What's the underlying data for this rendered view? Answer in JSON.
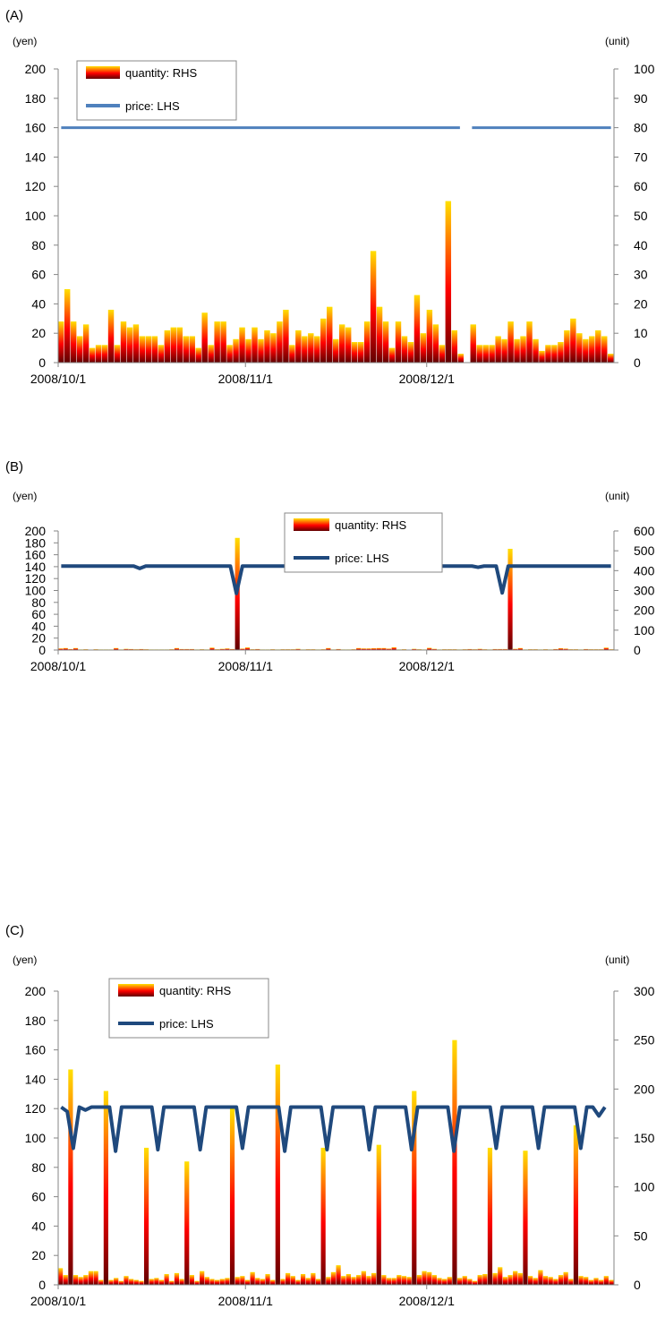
{
  "colors": {
    "price_a": "#4F81BD",
    "price_bc": "#1F497D",
    "bar_top": "#FFE000",
    "bar_mid": "#FF0000",
    "bar_bottom": "#600000"
  },
  "chart_data": [
    {
      "panel_label": "(A)",
      "type": "bar+line",
      "y_left_unit": "(yen)",
      "y_right_unit": "(unit)",
      "ylim_left": [
        0,
        200
      ],
      "ylim_right": [
        0,
        100
      ],
      "yticks_left": [
        "0",
        "20",
        "40",
        "60",
        "80",
        "100",
        "120",
        "140",
        "160",
        "180",
        "200"
      ],
      "yticks_right": [
        "0",
        "10",
        "20",
        "30",
        "40",
        "50",
        "60",
        "70",
        "80",
        "90",
        "100"
      ],
      "x_tick_labels": [
        "2008/10/1",
        "2008/11/1",
        "2008/12/1"
      ],
      "x_tick_dates": [
        "2008/10/1",
        "2008/11/1",
        "2008/12/1"
      ],
      "x_start": "2008/10/1",
      "x_end": "2008/12/31",
      "legend": {
        "quantity": "quantity: RHS",
        "price": "price: LHS",
        "position": "top-left"
      },
      "series": [
        {
          "name": "quantity: RHS",
          "axis": "right",
          "kind": "bar",
          "values": [
            14,
            25,
            14,
            9,
            13,
            5,
            6,
            6,
            18,
            6,
            14,
            12,
            13,
            9,
            9,
            9,
            6,
            11,
            12,
            12,
            9,
            9,
            5,
            17,
            6,
            14,
            14,
            6,
            8,
            12,
            8,
            12,
            8,
            11,
            10,
            14,
            18,
            6,
            11,
            9,
            10,
            9,
            15,
            19,
            8,
            13,
            12,
            7,
            7,
            14,
            38,
            19,
            14,
            5,
            14,
            9,
            7,
            23,
            10,
            18,
            13,
            6,
            55,
            11,
            3,
            0,
            13,
            6,
            6,
            6,
            9,
            8,
            14,
            8,
            9,
            14,
            8,
            4,
            6,
            6,
            7,
            11,
            15,
            10,
            8,
            9,
            11,
            9,
            3
          ]
        },
        {
          "name": "price: LHS",
          "axis": "left",
          "kind": "line",
          "segments": [
            {
              "from": "2008/10/1",
              "to": "2008/12/6",
              "value": 160
            },
            {
              "from": "2008/12/8",
              "to": "2008/12/31",
              "value": 160
            }
          ]
        }
      ]
    },
    {
      "panel_label": "(B)",
      "type": "bar+line",
      "y_left_unit": "(yen)",
      "y_right_unit": "(unit)",
      "ylim_left": [
        0,
        200
      ],
      "ylim_right": [
        0,
        600
      ],
      "yticks_left": [
        "0",
        "20",
        "40",
        "60",
        "80",
        "100",
        "120",
        "140",
        "160",
        "180",
        "200"
      ],
      "yticks_right": [
        "0",
        "100",
        "200",
        "300",
        "400",
        "500",
        "600"
      ],
      "x_tick_labels": [
        "2008/10/1",
        "2008/11/1",
        "2008/12/1"
      ],
      "x_tick_dates": [
        "2008/10/1",
        "2008/11/1",
        "2008/12/1"
      ],
      "x_start": "2008/10/1",
      "x_end": "2008/12/31",
      "legend": {
        "quantity": "quantity: RHS",
        "price": "price: LHS",
        "position": "top-center"
      },
      "series": [
        {
          "name": "quantity: RHS",
          "axis": "right",
          "kind": "bar",
          "values": [
            8,
            10,
            5,
            10,
            3,
            4,
            2,
            4,
            3,
            3,
            3,
            10,
            3,
            6,
            5,
            4,
            5,
            4,
            3,
            3,
            3,
            3,
            4,
            10,
            5,
            5,
            5,
            3,
            4,
            3,
            12,
            4,
            6,
            8,
            5,
            565,
            7,
            13,
            4,
            5,
            3,
            3,
            4,
            3,
            4,
            4,
            4,
            6,
            3,
            4,
            4,
            3,
            4,
            10,
            3,
            5,
            3,
            3,
            4,
            10,
            8,
            8,
            9,
            10,
            10,
            7,
            14,
            3,
            4,
            0,
            6,
            4,
            3,
            11,
            6,
            3,
            4,
            4,
            4,
            3,
            4,
            5,
            4,
            6,
            4,
            3,
            5,
            5,
            5,
            510,
            6,
            10,
            3,
            4,
            4,
            3,
            4,
            3,
            5,
            9,
            7,
            4,
            4,
            3,
            5,
            4,
            4,
            4,
            12,
            4
          ]
        },
        {
          "name": "price: LHS",
          "axis": "left",
          "kind": "line",
          "segments": [
            {
              "points": [
                [
                  "2008/10/1",
                  141
                ],
                [
                  "2008/10/13",
                  141
                ],
                [
                  "2008/10/14",
                  137
                ],
                [
                  "2008/10/15",
                  141
                ],
                [
                  "2008/10/29",
                  141
                ],
                [
                  "2008/10/30",
                  95
                ],
                [
                  "2008/10/31",
                  141
                ],
                [
                  "2008/11/8",
                  141
                ],
                [
                  "2008/11/9",
                  137
                ],
                [
                  "2008/11/10",
                  141
                ],
                [
                  "2008/11/27",
                  141
                ]
              ]
            },
            {
              "points": [
                [
                  "2008/11/29",
                  141
                ],
                [
                  "2008/12/8",
                  141
                ],
                [
                  "2008/12/9",
                  139
                ],
                [
                  "2008/12/10",
                  141
                ],
                [
                  "2008/12/12",
                  141
                ],
                [
                  "2008/12/13",
                  96
                ],
                [
                  "2008/12/14",
                  141
                ],
                [
                  "2008/12/31",
                  141
                ]
              ]
            }
          ]
        }
      ]
    },
    {
      "panel_label": "(C)",
      "type": "bar+line",
      "y_left_unit": "(yen)",
      "y_right_unit": "(unit)",
      "ylim_left": [
        0,
        200
      ],
      "ylim_right": [
        0,
        300
      ],
      "yticks_left": [
        "0",
        "20",
        "40",
        "60",
        "80",
        "100",
        "120",
        "140",
        "160",
        "180",
        "200"
      ],
      "yticks_right": [
        "0",
        "50",
        "100",
        "150",
        "200",
        "250",
        "300"
      ],
      "x_tick_labels": [
        "2008/10/1",
        "2008/11/1",
        "2008/12/1"
      ],
      "x_tick_dates": [
        "2008/10/1",
        "2008/11/1",
        "2008/12/1"
      ],
      "x_start": "2008/10/1",
      "x_end": "2008/12/31",
      "legend": {
        "quantity": "quantity: RHS",
        "price": "price: LHS",
        "position": "top-left"
      },
      "series": [
        {
          "name": "quantity: RHS",
          "axis": "right",
          "kind": "bar",
          "values": [
            17,
            10,
            220,
            10,
            8,
            10,
            14,
            14,
            5,
            198,
            5,
            7,
            4,
            9,
            6,
            5,
            4,
            140,
            6,
            7,
            5,
            11,
            4,
            12,
            6,
            126,
            10,
            4,
            14,
            8,
            6,
            5,
            6,
            7,
            180,
            8,
            9,
            5,
            13,
            7,
            6,
            11,
            5,
            225,
            6,
            12,
            9,
            5,
            11,
            7,
            12,
            6,
            140,
            8,
            13,
            20,
            9,
            11,
            8,
            10,
            14,
            9,
            12,
            143,
            10,
            7,
            7,
            10,
            9,
            8,
            198,
            10,
            14,
            13,
            10,
            7,
            6,
            8,
            250,
            7,
            9,
            6,
            4,
            10,
            11,
            140,
            12,
            18,
            8,
            10,
            14,
            12,
            137,
            9,
            7,
            15,
            9,
            8,
            6,
            10,
            13,
            6,
            163,
            9,
            8,
            5,
            7,
            5,
            9,
            5
          ]
        },
        {
          "name": "price: LHS",
          "axis": "left",
          "kind": "line",
          "points": [
            [
              "2008/10/1",
              121
            ],
            [
              "2008/10/2",
              118
            ],
            [
              "2008/10/3",
              93
            ],
            [
              "2008/10/4",
              121
            ],
            [
              "2008/10/5",
              119
            ],
            [
              "2008/10/6",
              121
            ],
            [
              "2008/10/9",
              121
            ],
            [
              "2008/10/10",
              91
            ],
            [
              "2008/10/11",
              121
            ],
            [
              "2008/10/16",
              121
            ],
            [
              "2008/10/17",
              92
            ],
            [
              "2008/10/18",
              121
            ],
            [
              "2008/10/23",
              121
            ],
            [
              "2008/10/24",
              92
            ],
            [
              "2008/10/25",
              121
            ],
            [
              "2008/10/30",
              121
            ],
            [
              "2008/10/31",
              93
            ],
            [
              "2008/11/1",
              121
            ],
            [
              "2008/11/6",
              121
            ],
            [
              "2008/11/7",
              91
            ],
            [
              "2008/11/8",
              121
            ],
            [
              "2008/11/13",
              121
            ],
            [
              "2008/11/14",
              92
            ],
            [
              "2008/11/15",
              121
            ],
            [
              "2008/11/20",
              121
            ],
            [
              "2008/11/21",
              92
            ],
            [
              "2008/11/22",
              121
            ],
            [
              "2008/11/27",
              121
            ],
            [
              "2008/11/28",
              92
            ],
            [
              "2008/11/29",
              121
            ],
            [
              "2008/12/4",
              121
            ],
            [
              "2008/12/5",
              91
            ],
            [
              "2008/12/6",
              121
            ],
            [
              "2008/12/11",
              121
            ],
            [
              "2008/12/12",
              93
            ],
            [
              "2008/12/13",
              121
            ],
            [
              "2008/12/18",
              121
            ],
            [
              "2008/12/19",
              93
            ],
            [
              "2008/12/20",
              121
            ],
            [
              "2008/12/25",
              121
            ],
            [
              "2008/12/26",
              93
            ],
            [
              "2008/12/27",
              121
            ],
            [
              "2008/12/28",
              121
            ],
            [
              "2008/12/29",
              115
            ],
            [
              "2008/12/30",
              121
            ]
          ]
        }
      ]
    }
  ]
}
